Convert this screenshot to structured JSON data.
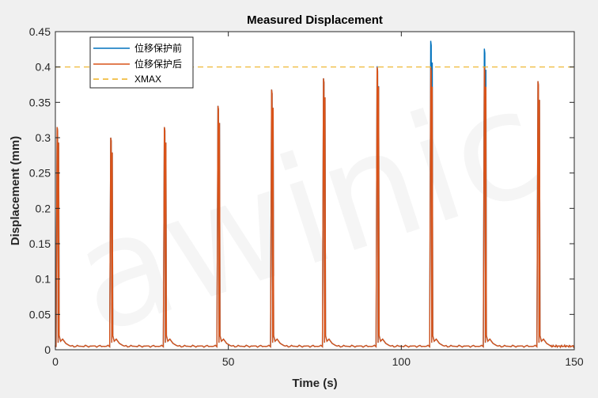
{
  "chart_data": {
    "type": "line",
    "title": "Measured Displacement",
    "xlabel": "Time (s)",
    "ylabel": "Displacement (mm)",
    "xlim": [
      0,
      150
    ],
    "ylim": [
      0,
      0.45
    ],
    "xticks": [
      0,
      50,
      100,
      150
    ],
    "yticks": [
      0,
      0.05,
      0.1,
      0.15,
      0.2,
      0.25,
      0.3,
      0.35,
      0.4,
      0.45
    ],
    "ytick_labels": [
      "0",
      "0.05",
      "0.1",
      "0.15",
      "0.2",
      "0.25",
      "0.3",
      "0.35",
      "0.4",
      "0.45"
    ],
    "grid": false,
    "legend_position": "top-left",
    "watermark": "awinic",
    "baseline": 0.005,
    "series": [
      {
        "name": "位移保护前",
        "color": "#0072BD",
        "peaks": [
          {
            "x": 0.5,
            "y": 0.315
          },
          {
            "x": 16.0,
            "y": 0.3
          },
          {
            "x": 31.5,
            "y": 0.315
          },
          {
            "x": 47.0,
            "y": 0.345
          },
          {
            "x": 62.5,
            "y": 0.368
          },
          {
            "x": 77.5,
            "y": 0.384
          },
          {
            "x": 93.0,
            "y": 0.401
          },
          {
            "x": 108.5,
            "y": 0.437
          },
          {
            "x": 124.0,
            "y": 0.426
          },
          {
            "x": 139.5,
            "y": 0.38
          }
        ]
      },
      {
        "name": "位移保护后",
        "color": "#D95319",
        "peaks": [
          {
            "x": 0.5,
            "y": 0.315
          },
          {
            "x": 16.0,
            "y": 0.3
          },
          {
            "x": 31.5,
            "y": 0.315
          },
          {
            "x": 47.0,
            "y": 0.345
          },
          {
            "x": 62.5,
            "y": 0.368
          },
          {
            "x": 77.5,
            "y": 0.384
          },
          {
            "x": 93.0,
            "y": 0.4
          },
          {
            "x": 108.5,
            "y": 0.4
          },
          {
            "x": 124.0,
            "y": 0.4
          },
          {
            "x": 139.5,
            "y": 0.38
          }
        ]
      },
      {
        "name": "XMAX",
        "color": "#EDB120",
        "dashed": true,
        "constant": 0.4
      }
    ]
  }
}
